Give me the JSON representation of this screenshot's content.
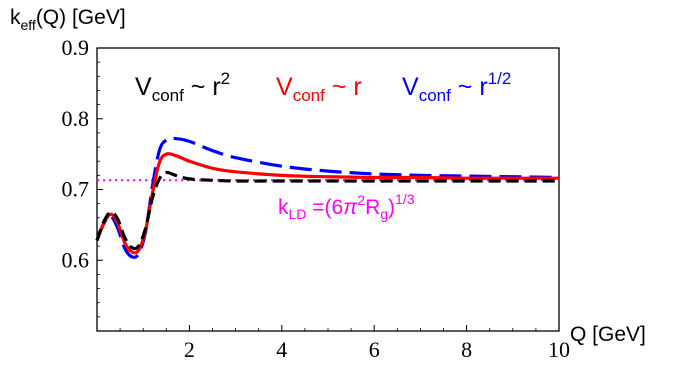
{
  "chart_data": {
    "type": "line",
    "ylabel": {
      "base": "k",
      "sub": "eff",
      "rest": "(Q) [GeV]"
    },
    "xlabel": "Q [GeV]",
    "xlim": [
      0,
      10
    ],
    "ylim": [
      0.5,
      0.9
    ],
    "xticks": [
      2,
      4,
      6,
      8,
      10
    ],
    "yticks": [
      0.6,
      0.7,
      0.8,
      0.9
    ],
    "grid": false,
    "series": [
      {
        "color": "#000000",
        "style": "dashed",
        "label": {
          "base": "V",
          "sub": "conf",
          "rel": " ~ r",
          "sup": "2"
        },
        "x": [
          0,
          0.15,
          0.3,
          0.45,
          0.6,
          0.75,
          0.9,
          1.05,
          1.2,
          1.35,
          1.5,
          1.7,
          2.0,
          2.5,
          3,
          4,
          5,
          6,
          7,
          8,
          9,
          10
        ],
        "y": [
          0.628,
          0.655,
          0.668,
          0.658,
          0.632,
          0.618,
          0.62,
          0.645,
          0.688,
          0.715,
          0.724,
          0.72,
          0.715,
          0.713,
          0.712,
          0.712,
          0.712,
          0.712,
          0.712,
          0.712,
          0.712,
          0.712
        ]
      },
      {
        "color": "#ff0000",
        "style": "solid",
        "label": {
          "base": "V",
          "sub": "conf",
          "rel": " ~ r",
          "sup": ""
        },
        "x": [
          0,
          0.15,
          0.3,
          0.45,
          0.6,
          0.75,
          0.9,
          1.05,
          1.2,
          1.35,
          1.5,
          1.7,
          2.0,
          2.5,
          3,
          4,
          5,
          6,
          7,
          8,
          9,
          10
        ],
        "y": [
          0.628,
          0.653,
          0.665,
          0.652,
          0.625,
          0.612,
          0.614,
          0.642,
          0.695,
          0.738,
          0.75,
          0.748,
          0.74,
          0.73,
          0.725,
          0.72,
          0.718,
          0.717,
          0.717,
          0.716,
          0.716,
          0.716
        ]
      },
      {
        "color": "#0000ff",
        "style": "dashed",
        "label": {
          "base": "V",
          "sub": "conf",
          "rel": " ~ r",
          "sup": "1/2"
        },
        "x": [
          0,
          0.15,
          0.3,
          0.45,
          0.6,
          0.75,
          0.9,
          1.05,
          1.2,
          1.35,
          1.5,
          1.7,
          2.0,
          2.5,
          3,
          4,
          5,
          6,
          7,
          8,
          9,
          10
        ],
        "y": [
          0.628,
          0.652,
          0.662,
          0.645,
          0.617,
          0.605,
          0.609,
          0.64,
          0.705,
          0.755,
          0.77,
          0.772,
          0.768,
          0.755,
          0.745,
          0.733,
          0.726,
          0.722,
          0.72,
          0.719,
          0.718,
          0.717
        ]
      }
    ],
    "reference_line": {
      "y": 0.713,
      "color": "#ff00ff",
      "style": "dotted",
      "label": {
        "base": "k",
        "sub": "LD",
        "eq": " =(6",
        "pi": "π",
        "sup2": "2",
        "R": "R",
        "subg": "g",
        "close": ")",
        "sup3": "1/3"
      }
    }
  }
}
